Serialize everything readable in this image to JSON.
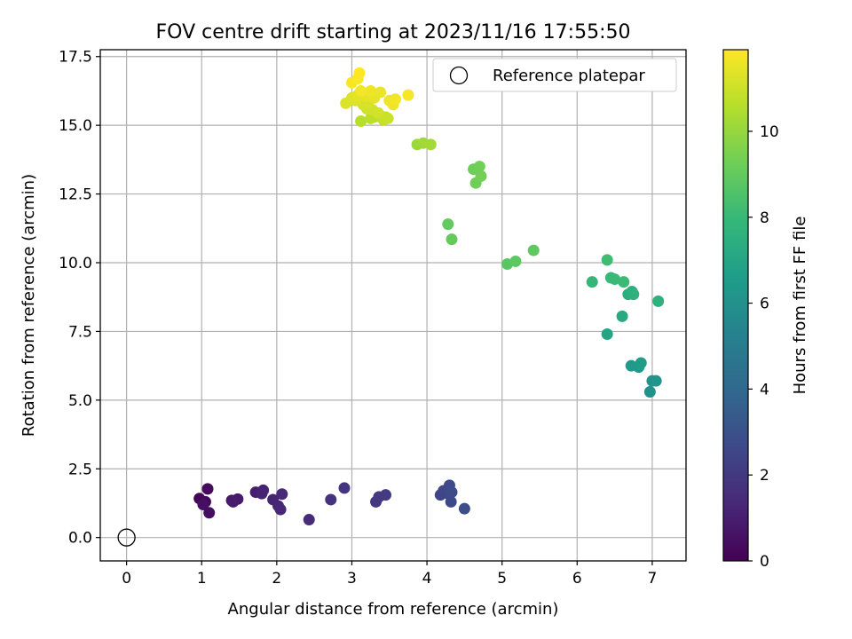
{
  "chart_data": {
    "type": "scatter",
    "title": "FOV centre drift starting at 2023/11/16 17:55:50",
    "xlabel": "Angular distance from reference (arcmin)",
    "ylabel": "Rotation from reference (arcmin)",
    "xlim": [
      -0.35,
      7.45
    ],
    "ylim": [
      -0.85,
      17.75
    ],
    "xticks": [
      0,
      1,
      2,
      3,
      4,
      5,
      6,
      7
    ],
    "xtick_labels": [
      "0",
      "1",
      "2",
      "3",
      "4",
      "5",
      "6",
      "7"
    ],
    "yticks": [
      0,
      2.5,
      5,
      7.5,
      10,
      12.5,
      15,
      17.5
    ],
    "ytick_labels": [
      "0.0",
      "2.5",
      "5.0",
      "7.5",
      "10.0",
      "12.5",
      "15.0",
      "17.5"
    ],
    "grid": true,
    "legend": {
      "position": "top-right",
      "label": "Reference platepar"
    },
    "reference_point": {
      "x": 0,
      "y": 0
    },
    "colorbar": {
      "label": "Hours from first FF file",
      "min": 0,
      "max": 11.9,
      "ticks": [
        0,
        2,
        4,
        6,
        8,
        10
      ],
      "tick_labels": [
        "0",
        "2",
        "4",
        "6",
        "8",
        "10"
      ],
      "colormap": "viridis"
    },
    "points": [
      {
        "x": 0.97,
        "y": 1.42,
        "c": 0.1
      },
      {
        "x": 1.05,
        "y": 1.3,
        "c": 0.2
      },
      {
        "x": 1.08,
        "y": 1.77,
        "c": 0.3
      },
      {
        "x": 1.1,
        "y": 0.9,
        "c": 0.4
      },
      {
        "x": 1.02,
        "y": 1.2,
        "c": 0.5
      },
      {
        "x": 1.4,
        "y": 1.35,
        "c": 0.7
      },
      {
        "x": 1.48,
        "y": 1.4,
        "c": 0.8
      },
      {
        "x": 1.42,
        "y": 1.3,
        "c": 0.9
      },
      {
        "x": 1.72,
        "y": 1.65,
        "c": 1.0
      },
      {
        "x": 1.82,
        "y": 1.72,
        "c": 1.1
      },
      {
        "x": 1.8,
        "y": 1.6,
        "c": 1.15
      },
      {
        "x": 1.95,
        "y": 1.38,
        "c": 1.2
      },
      {
        "x": 2.02,
        "y": 1.15,
        "c": 1.25
      },
      {
        "x": 2.05,
        "y": 1.02,
        "c": 1.3
      },
      {
        "x": 2.07,
        "y": 1.58,
        "c": 1.35
      },
      {
        "x": 2.43,
        "y": 0.65,
        "c": 1.5
      },
      {
        "x": 2.72,
        "y": 1.38,
        "c": 1.7
      },
      {
        "x": 2.9,
        "y": 1.8,
        "c": 1.8
      },
      {
        "x": 3.32,
        "y": 1.3,
        "c": 1.9
      },
      {
        "x": 3.36,
        "y": 1.48,
        "c": 2.0
      },
      {
        "x": 3.45,
        "y": 1.55,
        "c": 2.1
      },
      {
        "x": 4.18,
        "y": 1.55,
        "c": 2.5
      },
      {
        "x": 4.22,
        "y": 1.7,
        "c": 2.55
      },
      {
        "x": 4.28,
        "y": 1.6,
        "c": 2.6
      },
      {
        "x": 4.3,
        "y": 1.9,
        "c": 2.65
      },
      {
        "x": 4.32,
        "y": 1.3,
        "c": 2.7
      },
      {
        "x": 4.33,
        "y": 1.65,
        "c": 2.75
      },
      {
        "x": 4.5,
        "y": 1.05,
        "c": 2.8
      },
      {
        "x": 6.97,
        "y": 5.3,
        "c": 6.0
      },
      {
        "x": 7.0,
        "y": 5.7,
        "c": 6.1
      },
      {
        "x": 7.05,
        "y": 5.7,
        "c": 6.15
      },
      {
        "x": 6.72,
        "y": 6.25,
        "c": 6.4
      },
      {
        "x": 6.82,
        "y": 6.2,
        "c": 6.45
      },
      {
        "x": 6.85,
        "y": 6.35,
        "c": 6.5
      },
      {
        "x": 6.4,
        "y": 7.4,
        "c": 7.0
      },
      {
        "x": 6.6,
        "y": 8.05,
        "c": 7.2
      },
      {
        "x": 6.68,
        "y": 8.85,
        "c": 7.4
      },
      {
        "x": 6.73,
        "y": 8.95,
        "c": 7.5
      },
      {
        "x": 6.75,
        "y": 8.85,
        "c": 7.55
      },
      {
        "x": 7.08,
        "y": 8.6,
        "c": 7.6
      },
      {
        "x": 6.2,
        "y": 9.3,
        "c": 7.9
      },
      {
        "x": 6.45,
        "y": 9.45,
        "c": 8.0
      },
      {
        "x": 6.5,
        "y": 9.4,
        "c": 8.05
      },
      {
        "x": 6.62,
        "y": 9.3,
        "c": 8.1
      },
      {
        "x": 6.4,
        "y": 10.1,
        "c": 8.2
      },
      {
        "x": 5.07,
        "y": 9.95,
        "c": 8.8
      },
      {
        "x": 5.18,
        "y": 10.05,
        "c": 8.85
      },
      {
        "x": 5.42,
        "y": 10.45,
        "c": 8.9
      },
      {
        "x": 4.28,
        "y": 11.4,
        "c": 9.0
      },
      {
        "x": 4.33,
        "y": 10.85,
        "c": 9.05
      },
      {
        "x": 4.62,
        "y": 13.4,
        "c": 9.2
      },
      {
        "x": 4.65,
        "y": 12.9,
        "c": 9.25
      },
      {
        "x": 4.7,
        "y": 13.5,
        "c": 9.3
      },
      {
        "x": 4.72,
        "y": 13.15,
        "c": 9.35
      },
      {
        "x": 3.87,
        "y": 14.3,
        "c": 10.1
      },
      {
        "x": 3.95,
        "y": 14.35,
        "c": 10.2
      },
      {
        "x": 4.05,
        "y": 14.3,
        "c": 10.25
      },
      {
        "x": 3.12,
        "y": 15.15,
        "c": 10.6
      },
      {
        "x": 3.25,
        "y": 15.25,
        "c": 10.7
      },
      {
        "x": 3.3,
        "y": 15.3,
        "c": 10.75
      },
      {
        "x": 3.38,
        "y": 15.35,
        "c": 10.8
      },
      {
        "x": 3.42,
        "y": 15.2,
        "c": 10.85
      },
      {
        "x": 3.45,
        "y": 15.3,
        "c": 10.9
      },
      {
        "x": 3.48,
        "y": 15.25,
        "c": 10.95
      },
      {
        "x": 3.2,
        "y": 15.6,
        "c": 11.0
      },
      {
        "x": 3.28,
        "y": 15.55,
        "c": 11.05
      },
      {
        "x": 3.35,
        "y": 15.45,
        "c": 11.1
      },
      {
        "x": 3.15,
        "y": 15.75,
        "c": 11.15
      },
      {
        "x": 3.22,
        "y": 15.8,
        "c": 11.2
      },
      {
        "x": 2.92,
        "y": 15.8,
        "c": 11.25
      },
      {
        "x": 3.0,
        "y": 16.0,
        "c": 11.3
      },
      {
        "x": 3.05,
        "y": 15.9,
        "c": 11.35
      },
      {
        "x": 3.08,
        "y": 16.1,
        "c": 11.4
      },
      {
        "x": 3.18,
        "y": 16.05,
        "c": 11.45
      },
      {
        "x": 3.3,
        "y": 16.0,
        "c": 11.5
      },
      {
        "x": 3.38,
        "y": 16.2,
        "c": 11.55
      },
      {
        "x": 3.5,
        "y": 15.9,
        "c": 11.6
      },
      {
        "x": 3.55,
        "y": 15.75,
        "c": 11.65
      },
      {
        "x": 3.58,
        "y": 15.95,
        "c": 11.7
      },
      {
        "x": 3.75,
        "y": 16.1,
        "c": 11.75
      },
      {
        "x": 3.0,
        "y": 16.55,
        "c": 11.8
      },
      {
        "x": 3.08,
        "y": 16.7,
        "c": 11.85
      },
      {
        "x": 3.1,
        "y": 16.9,
        "c": 11.9
      },
      {
        "x": 3.25,
        "y": 16.25,
        "c": 11.6
      },
      {
        "x": 3.12,
        "y": 16.25,
        "c": 11.7
      }
    ]
  }
}
